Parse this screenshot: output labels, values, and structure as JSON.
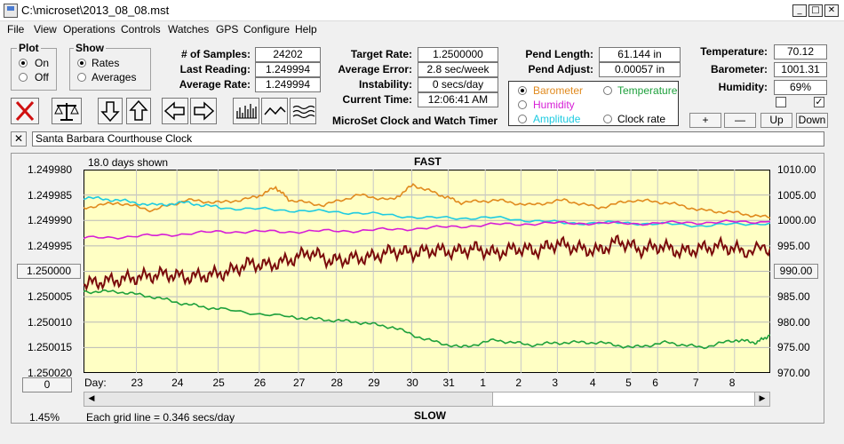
{
  "window": {
    "title": "C:\\microset\\2013_08_08.mst",
    "minimize": "_",
    "maximize": "□",
    "close": "✕"
  },
  "menu": [
    "File",
    "View",
    "Operations",
    "Controls",
    "Watches",
    "GPS",
    "Configure",
    "Help"
  ],
  "plot_group": {
    "title": "Plot",
    "options": [
      "On",
      "Off"
    ],
    "selected": "On"
  },
  "show_group": {
    "title": "Show",
    "options": [
      "Rates",
      "Averages"
    ],
    "selected": "Rates"
  },
  "stats": {
    "samples_label": "# of Samples:",
    "samples": "24202",
    "last_label": "Last Reading:",
    "last": "1.249994",
    "avg_label": "Average Rate:",
    "avg": "1.249994",
    "target_label": "Target Rate:",
    "target": "1.2500000",
    "err_label": "Average Error:",
    "err": "2.8 sec/week",
    "inst_label": "Instability:",
    "inst": "0 secs/day",
    "time_label": "Current Time:",
    "time": "12:06:41 AM",
    "pend_len_label": "Pend Length:",
    "pend_len": "61.144 in",
    "pend_adj_label": "Pend Adjust:",
    "pend_adj": "0.00057 in",
    "temp_label": "Temperature:",
    "temp": "70.12",
    "baro_label": "Barometer:",
    "baro": "1001.31",
    "hum_label": "Humidity:",
    "hum": "69%"
  },
  "app_name": "MicroSet Clock and Watch Timer",
  "series_select": {
    "options": [
      {
        "label": "Barometer",
        "color": "#e08a1e",
        "selected": true
      },
      {
        "label": "Temperature",
        "color": "#1ea03c",
        "selected": false
      },
      {
        "label": "Humidity",
        "color": "#d61ed6",
        "selected": false
      },
      {
        "label": "Clock rate",
        "color": "#000000",
        "selected": false
      },
      {
        "label": "Amplitude",
        "color": "#1ecbe1",
        "selected": false
      }
    ]
  },
  "scale_buttons": [
    "+",
    "—",
    "Up",
    "Down"
  ],
  "checkboxes": [
    {
      "checked": false
    },
    {
      "checked": true
    }
  ],
  "toolbar_icons": [
    "stop-icon",
    "balance-icon",
    "arrow-down-icon",
    "arrow-up-icon",
    "arrow-left-icon",
    "arrow-right-icon",
    "bars-icon",
    "wave-icon",
    "ripple-icon"
  ],
  "clock_close": "✕",
  "clock_name": "Santa Barbara Courthouse Clock",
  "chart_data": {
    "type": "line",
    "top_label": "FAST",
    "bottom_label": "SLOW",
    "days_shown": "18.0 days shown",
    "grid_note": "Each grid line = 0.346 secs/day",
    "percent": "1.45%",
    "left_ticks": [
      "1.249980",
      "1.249985",
      "1.249990",
      "1.249995",
      "1.250000",
      "1.250005",
      "1.250010",
      "1.250015",
      "1.250020"
    ],
    "right_ticks": [
      "1010.00",
      "1005.00",
      "1000.00",
      "995.00",
      "990.00",
      "985.00",
      "980.00",
      "975.00",
      "970.00"
    ],
    "left_button": "1.250000",
    "right_button": "990.00",
    "offset_button": "0",
    "x_prefix": "Day:",
    "days": [
      "23",
      "24",
      "25",
      "26",
      "27",
      "28",
      "29",
      "30",
      "31",
      "1",
      "2",
      "3",
      "4",
      "5",
      "6",
      "7",
      "8"
    ],
    "day_positions": [
      0.077,
      0.136,
      0.196,
      0.256,
      0.313,
      0.368,
      0.422,
      0.478,
      0.531,
      0.585,
      0.637,
      0.69,
      0.745,
      0.797,
      0.836,
      0.895,
      0.948
    ],
    "left_range": [
      1.24998,
      1.25002
    ],
    "right_range": [
      970,
      1010
    ],
    "series": [
      {
        "color": "#e08a1e",
        "axis": "right",
        "x": [
          0,
          0.05,
          0.1,
          0.15,
          0.2,
          0.25,
          0.28,
          0.3,
          0.35,
          0.4,
          0.45,
          0.48,
          0.52,
          0.55,
          0.6,
          0.65,
          0.7,
          0.75,
          0.8,
          0.85,
          0.9,
          0.95,
          1.0
        ],
        "y": [
          1002.5,
          1003.5,
          1002,
          1004,
          1003.5,
          1004.5,
          1006.5,
          1004,
          1003,
          1005,
          1004,
          1007,
          1005,
          1003.5,
          1004,
          1003,
          1004,
          1002.5,
          1004,
          1003.5,
          1002,
          1001.5,
          1000.5
        ]
      },
      {
        "color": "#1ecbe1",
        "axis": "right",
        "x": [
          0,
          0.05,
          0.1,
          0.15,
          0.2,
          0.3,
          0.4,
          0.5,
          0.6,
          0.7,
          0.8,
          0.9,
          1.0
        ],
        "y": [
          1004.5,
          1004,
          1003,
          1003.5,
          1002.5,
          1002,
          1001.5,
          1000.5,
          1000.5,
          999.5,
          999.5,
          999,
          999.5
        ]
      },
      {
        "color": "#d61ed6",
        "axis": "right",
        "x": [
          0,
          0.1,
          0.2,
          0.3,
          0.4,
          0.5,
          0.6,
          0.7,
          0.8,
          0.9,
          1.0
        ],
        "y": [
          996.5,
          997,
          997.8,
          997.8,
          998,
          998.5,
          999.2,
          999.5,
          999.4,
          999.6,
          999.8
        ]
      },
      {
        "color": "#1ea03c",
        "axis": "right",
        "x": [
          0,
          0.05,
          0.1,
          0.15,
          0.2,
          0.3,
          0.35,
          0.4,
          0.45,
          0.5,
          0.55,
          0.6,
          0.65,
          0.7,
          0.75,
          0.8,
          0.85,
          0.9,
          0.95,
          0.98,
          1.0
        ],
        "y": [
          986,
          986,
          985,
          983.5,
          982.5,
          981,
          980.5,
          980,
          979,
          976.5,
          975,
          976.5,
          975.5,
          976,
          976,
          975,
          976,
          975,
          976.5,
          976,
          977.5
        ]
      },
      {
        "color": "#7a0b0b",
        "axis": "left",
        "x": [
          0,
          0.03,
          0.06,
          0.09,
          0.12,
          0.15,
          0.18,
          0.21,
          0.24,
          0.27,
          0.3,
          0.33,
          0.36,
          0.39,
          0.42,
          0.45,
          0.48,
          0.51,
          0.54,
          0.57,
          0.6,
          0.63,
          0.66,
          0.69,
          0.72,
          0.75,
          0.78,
          0.81,
          0.84,
          0.87,
          0.9,
          0.93,
          0.96,
          1.0
        ],
        "y": [
          1.2500025,
          1.250002,
          1.2500015,
          1.250001,
          1.2500005,
          1.2500012,
          1.2500008,
          1.2500002,
          1.2499985,
          1.2499988,
          1.2499978,
          1.2499962,
          1.249998,
          1.2499975,
          1.2499972,
          1.249996,
          1.2499965,
          1.2499958,
          1.2499962,
          1.2499955,
          1.2499965,
          1.2499955,
          1.249996,
          1.2499945,
          1.2499955,
          1.249996,
          1.249994,
          1.2499958,
          1.249995,
          1.2499962,
          1.2499955,
          1.249995,
          1.249996,
          1.2499955
        ]
      }
    ]
  }
}
